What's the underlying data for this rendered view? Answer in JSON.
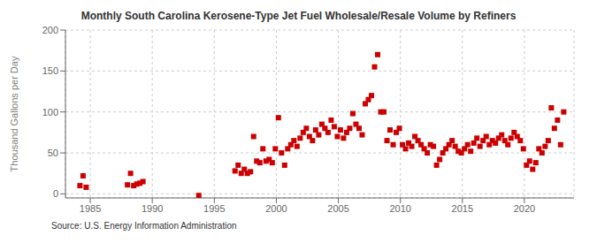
{
  "chart_data": {
    "type": "scatter",
    "title": "Monthly South Carolina Kerosene-Type Jet Fuel Wholesale/Resale Volume by Refiners",
    "ylabel": "Thousand Gallons per Day",
    "annotations": [
      "Source: U.S. Energy Information Administration"
    ],
    "color": "#cc0000",
    "marker": "square",
    "grid": true,
    "xlim": [
      1983.0,
      2024.0
    ],
    "ylim": [
      -5,
      200
    ],
    "xticks": [
      1985,
      1990,
      1995,
      2000,
      2005,
      2010,
      2015,
      2020
    ],
    "yticks": [
      0,
      50,
      100,
      150,
      200
    ],
    "x": [
      1984.17,
      1984.42,
      1984.67,
      1988.0,
      1988.25,
      1988.5,
      1988.75,
      1989.0,
      1989.25,
      1993.75,
      1996.67,
      1996.92,
      1997.17,
      1997.42,
      1997.67,
      1997.92,
      1998.17,
      1998.42,
      1998.67,
      1998.92,
      1999.17,
      1999.42,
      1999.67,
      1999.92,
      2000.17,
      2000.42,
      2000.67,
      2000.92,
      2001.17,
      2001.42,
      2001.67,
      2001.92,
      2002.17,
      2002.42,
      2002.67,
      2002.92,
      2003.17,
      2003.42,
      2003.67,
      2003.92,
      2004.17,
      2004.42,
      2004.67,
      2004.92,
      2005.17,
      2005.42,
      2005.67,
      2005.92,
      2006.17,
      2006.42,
      2006.67,
      2006.92,
      2007.17,
      2007.42,
      2007.67,
      2007.92,
      2008.17,
      2008.42,
      2008.67,
      2008.92,
      2009.17,
      2009.42,
      2009.67,
      2009.92,
      2010.17,
      2010.42,
      2010.67,
      2010.92,
      2011.17,
      2011.42,
      2011.67,
      2011.92,
      2012.17,
      2012.42,
      2012.67,
      2012.92,
      2013.17,
      2013.42,
      2013.67,
      2013.92,
      2014.17,
      2014.42,
      2014.67,
      2014.92,
      2015.17,
      2015.42,
      2015.67,
      2015.92,
      2016.17,
      2016.42,
      2016.67,
      2016.92,
      2017.17,
      2017.42,
      2017.67,
      2017.92,
      2018.17,
      2018.42,
      2018.67,
      2018.92,
      2019.17,
      2019.42,
      2019.67,
      2019.92,
      2020.17,
      2020.42,
      2020.67,
      2020.92,
      2021.17,
      2021.42,
      2021.67,
      2021.92,
      2022.17,
      2022.42,
      2022.67,
      2022.92,
      2023.17
    ],
    "values": [
      10,
      22,
      8,
      11,
      25,
      10,
      12,
      13,
      15,
      -2,
      28,
      35,
      25,
      30,
      25,
      27,
      70,
      40,
      38,
      55,
      40,
      42,
      38,
      55,
      93,
      50,
      35,
      55,
      60,
      65,
      58,
      68,
      75,
      80,
      70,
      65,
      78,
      72,
      85,
      80,
      75,
      90,
      82,
      70,
      78,
      68,
      75,
      80,
      98,
      85,
      80,
      72,
      110,
      115,
      120,
      155,
      170,
      100,
      100,
      65,
      78,
      60,
      75,
      80,
      60,
      55,
      62,
      58,
      70,
      65,
      60,
      55,
      50,
      60,
      58,
      35,
      42,
      50,
      55,
      60,
      65,
      58,
      52,
      50,
      55,
      60,
      52,
      62,
      68,
      58,
      65,
      70,
      60,
      65,
      62,
      68,
      72,
      65,
      60,
      68,
      75,
      70,
      65,
      55,
      35,
      40,
      30,
      38,
      55,
      50,
      58,
      65,
      105,
      80,
      90,
      60,
      100
    ]
  }
}
